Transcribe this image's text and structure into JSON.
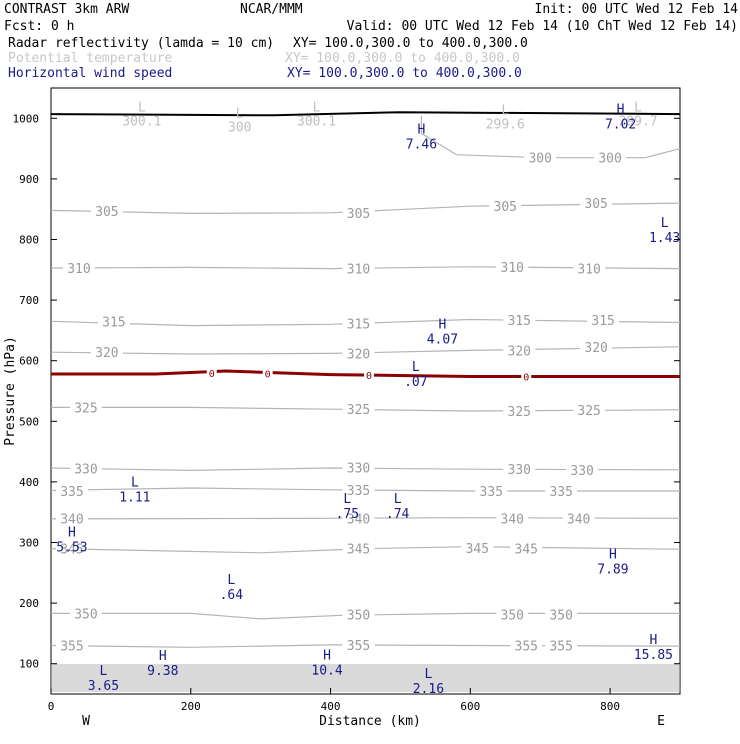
{
  "header": {
    "line1_left": "CONTRAST  3km ARW",
    "line1_mid": "NCAR/MMM",
    "line1_right": "Init: 00 UTC Wed 12 Feb 14",
    "line2_left": "Fcst:    0 h",
    "line2_right": "Valid: 00 UTC Wed 12 Feb 14 (10 ChT Wed 12 Feb 14)",
    "fields": [
      {
        "name": "Radar reflectivity (lamda = 10 cm)",
        "xy": "XY= 100.0,300.0 to 400.0,300.0",
        "color": "#000000"
      },
      {
        "name": "Potential temperature",
        "xy": "XY= 100.0,300.0 to 400.0,300.0",
        "color": "#c8c8c8"
      },
      {
        "name": "Horizontal wind speed",
        "xy": "XY= 100.0,300.0 to 400.0,300.0",
        "color": "#1a1a8c"
      }
    ]
  },
  "colors": {
    "theta": "#b4b4b4",
    "theta_label": "#9a9a9a",
    "wind_label": "#1a1a8c",
    "zero_line": "#8b0000",
    "ground": "#000000",
    "faded_label": "#c0c0c0"
  },
  "chart_data": {
    "type": "contour",
    "xlabel": "Distance (km)",
    "ylabel": "Pressure (hPa)",
    "xlim": [
      0,
      900
    ],
    "ylim": [
      1050,
      50
    ],
    "xticks": [
      0,
      200,
      400,
      600,
      800
    ],
    "yticks": [
      100,
      200,
      300,
      400,
      500,
      600,
      700,
      800,
      900,
      1000
    ],
    "x_ends": [
      "W",
      "E"
    ],
    "theta_contours": [
      {
        "level": 355,
        "points": [
          [
            0,
            130
          ],
          [
            200,
            127
          ],
          [
            400,
            131
          ],
          [
            600,
            130
          ],
          [
            900,
            129
          ]
        ],
        "labels": [
          [
            30,
            130
          ],
          [
            440,
            131
          ],
          [
            680,
            130
          ],
          [
            730,
            130
          ]
        ]
      },
      {
        "level": 350,
        "points": [
          [
            0,
            183
          ],
          [
            200,
            183
          ],
          [
            300,
            174
          ],
          [
            420,
            180
          ],
          [
            600,
            183
          ],
          [
            900,
            183
          ]
        ],
        "labels": [
          [
            50,
            183
          ],
          [
            440,
            181
          ],
          [
            660,
            181
          ],
          [
            730,
            181
          ]
        ]
      },
      {
        "level": 345,
        "points": [
          [
            0,
            290
          ],
          [
            300,
            283
          ],
          [
            450,
            290
          ],
          [
            600,
            293
          ],
          [
            900,
            289
          ]
        ],
        "labels": [
          [
            30,
            290
          ],
          [
            440,
            290
          ],
          [
            610,
            291
          ],
          [
            680,
            290
          ]
        ]
      },
      {
        "level": 340,
        "points": [
          [
            0,
            339
          ],
          [
            400,
            340
          ],
          [
            600,
            341
          ],
          [
            900,
            340
          ]
        ],
        "labels": [
          [
            30,
            340
          ],
          [
            440,
            340
          ],
          [
            660,
            340
          ],
          [
            755,
            340
          ]
        ]
      },
      {
        "level": 335,
        "points": [
          [
            0,
            386
          ],
          [
            200,
            390
          ],
          [
            400,
            387
          ],
          [
            600,
            385
          ],
          [
            900,
            385
          ]
        ],
        "labels": [
          [
            30,
            385
          ],
          [
            440,
            387
          ],
          [
            630,
            385
          ],
          [
            730,
            385
          ]
        ]
      },
      {
        "level": 330,
        "points": [
          [
            0,
            423
          ],
          [
            200,
            419
          ],
          [
            400,
            423
          ],
          [
            600,
            421
          ],
          [
            900,
            420
          ]
        ],
        "labels": [
          [
            50,
            422
          ],
          [
            440,
            424
          ],
          [
            670,
            421
          ],
          [
            760,
            420
          ]
        ]
      },
      {
        "level": 325,
        "points": [
          [
            0,
            523
          ],
          [
            200,
            523
          ],
          [
            400,
            520
          ],
          [
            600,
            517
          ],
          [
            900,
            519
          ]
        ],
        "labels": [
          [
            50,
            523
          ],
          [
            440,
            520
          ],
          [
            670,
            517
          ],
          [
            770,
            519
          ]
        ]
      },
      {
        "level": 320,
        "points": [
          [
            0,
            614
          ],
          [
            200,
            611
          ],
          [
            400,
            612
          ],
          [
            600,
            617
          ],
          [
            900,
            623
          ]
        ],
        "labels": [
          [
            80,
            614
          ],
          [
            440,
            612
          ],
          [
            670,
            617
          ],
          [
            780,
            623
          ]
        ]
      },
      {
        "level": 315,
        "points": [
          [
            0,
            665
          ],
          [
            200,
            658
          ],
          [
            400,
            660
          ],
          [
            600,
            668
          ],
          [
            900,
            663
          ]
        ],
        "labels": [
          [
            90,
            665
          ],
          [
            440,
            661
          ],
          [
            670,
            667
          ],
          [
            790,
            667
          ]
        ]
      },
      {
        "level": 310,
        "points": [
          [
            0,
            753
          ],
          [
            200,
            754
          ],
          [
            400,
            752
          ],
          [
            600,
            755
          ],
          [
            900,
            752
          ]
        ],
        "labels": [
          [
            40,
            753
          ],
          [
            440,
            752
          ],
          [
            660,
            755
          ],
          [
            770,
            752
          ]
        ]
      },
      {
        "level": 305,
        "points": [
          [
            0,
            848
          ],
          [
            200,
            843
          ],
          [
            400,
            844
          ],
          [
            600,
            855
          ],
          [
            900,
            860
          ]
        ],
        "labels": [
          [
            80,
            847
          ],
          [
            440,
            844
          ],
          [
            650,
            855
          ],
          [
            780,
            860
          ]
        ]
      },
      {
        "level": 300,
        "points": [
          [
            530,
            1004
          ],
          [
            530,
            975
          ],
          [
            580,
            940
          ],
          [
            700,
            935
          ],
          [
            850,
            935
          ],
          [
            900,
            950
          ]
        ],
        "labels": [
          [
            700,
            935
          ],
          [
            800,
            935
          ]
        ]
      }
    ],
    "zero_reflectivity_line": {
      "level": 0,
      "points": [
        [
          0,
          578
        ],
        [
          150,
          578
        ],
        [
          250,
          583
        ],
        [
          400,
          577
        ],
        [
          600,
          574
        ],
        [
          900,
          574
        ]
      ],
      "labels": [
        [
          230,
          580
        ],
        [
          310,
          579
        ],
        [
          455,
          576
        ],
        [
          680,
          574
        ]
      ]
    },
    "ground_line": [
      [
        0,
        1007
      ],
      [
        320,
        1005
      ],
      [
        500,
        1010
      ],
      [
        900,
        1007
      ]
    ],
    "extrema": [
      {
        "type": "L",
        "value": "3.65",
        "x": 75,
        "p": 78
      },
      {
        "type": "H",
        "value": "9.38",
        "x": 160,
        "p": 103
      },
      {
        "type": "H",
        "value": "10.4",
        "x": 395,
        "p": 104
      },
      {
        "type": "L",
        "value": "2.16",
        "x": 540,
        "p": 73
      },
      {
        "type": "H",
        "value": "15.85",
        "x": 862,
        "p": 129
      },
      {
        "type": "L",
        "value": ".64",
        "x": 258,
        "p": 228
      },
      {
        "type": "H",
        "value": "5.53",
        "x": 30,
        "p": 307
      },
      {
        "type": "H",
        "value": "7.89",
        "x": 804,
        "p": 270
      },
      {
        "type": "L",
        "value": ".75",
        "x": 424,
        "p": 362
      },
      {
        "type": "L",
        "value": ".74",
        "x": 496,
        "p": 362
      },
      {
        "type": "L",
        "value": "1.11",
        "x": 120,
        "p": 389
      },
      {
        "type": "L",
        "value": ".07",
        "x": 522,
        "p": 580
      },
      {
        "type": "H",
        "value": "4.07",
        "x": 560,
        "p": 650
      },
      {
        "type": "L",
        "value": "1.43",
        "x": 878,
        "p": 817
      },
      {
        "type": "H",
        "value": "7.46",
        "x": 530,
        "p": 972
      },
      {
        "type": "H",
        "value": "7.02",
        "x": 815,
        "p": 1005
      }
    ],
    "surface_lows": [
      {
        "type": "L",
        "value": "300.1",
        "x": 130,
        "p": 1005
      },
      {
        "type": "L",
        "value": "300",
        "x": 270,
        "p": 995
      },
      {
        "type": "L",
        "value": "300.1",
        "x": 380,
        "p": 1005
      },
      {
        "type": "L",
        "value": "299.6",
        "x": 650,
        "p": 1000
      },
      {
        "type": "L",
        "value": "299.7",
        "x": 840,
        "p": 1005
      }
    ]
  }
}
